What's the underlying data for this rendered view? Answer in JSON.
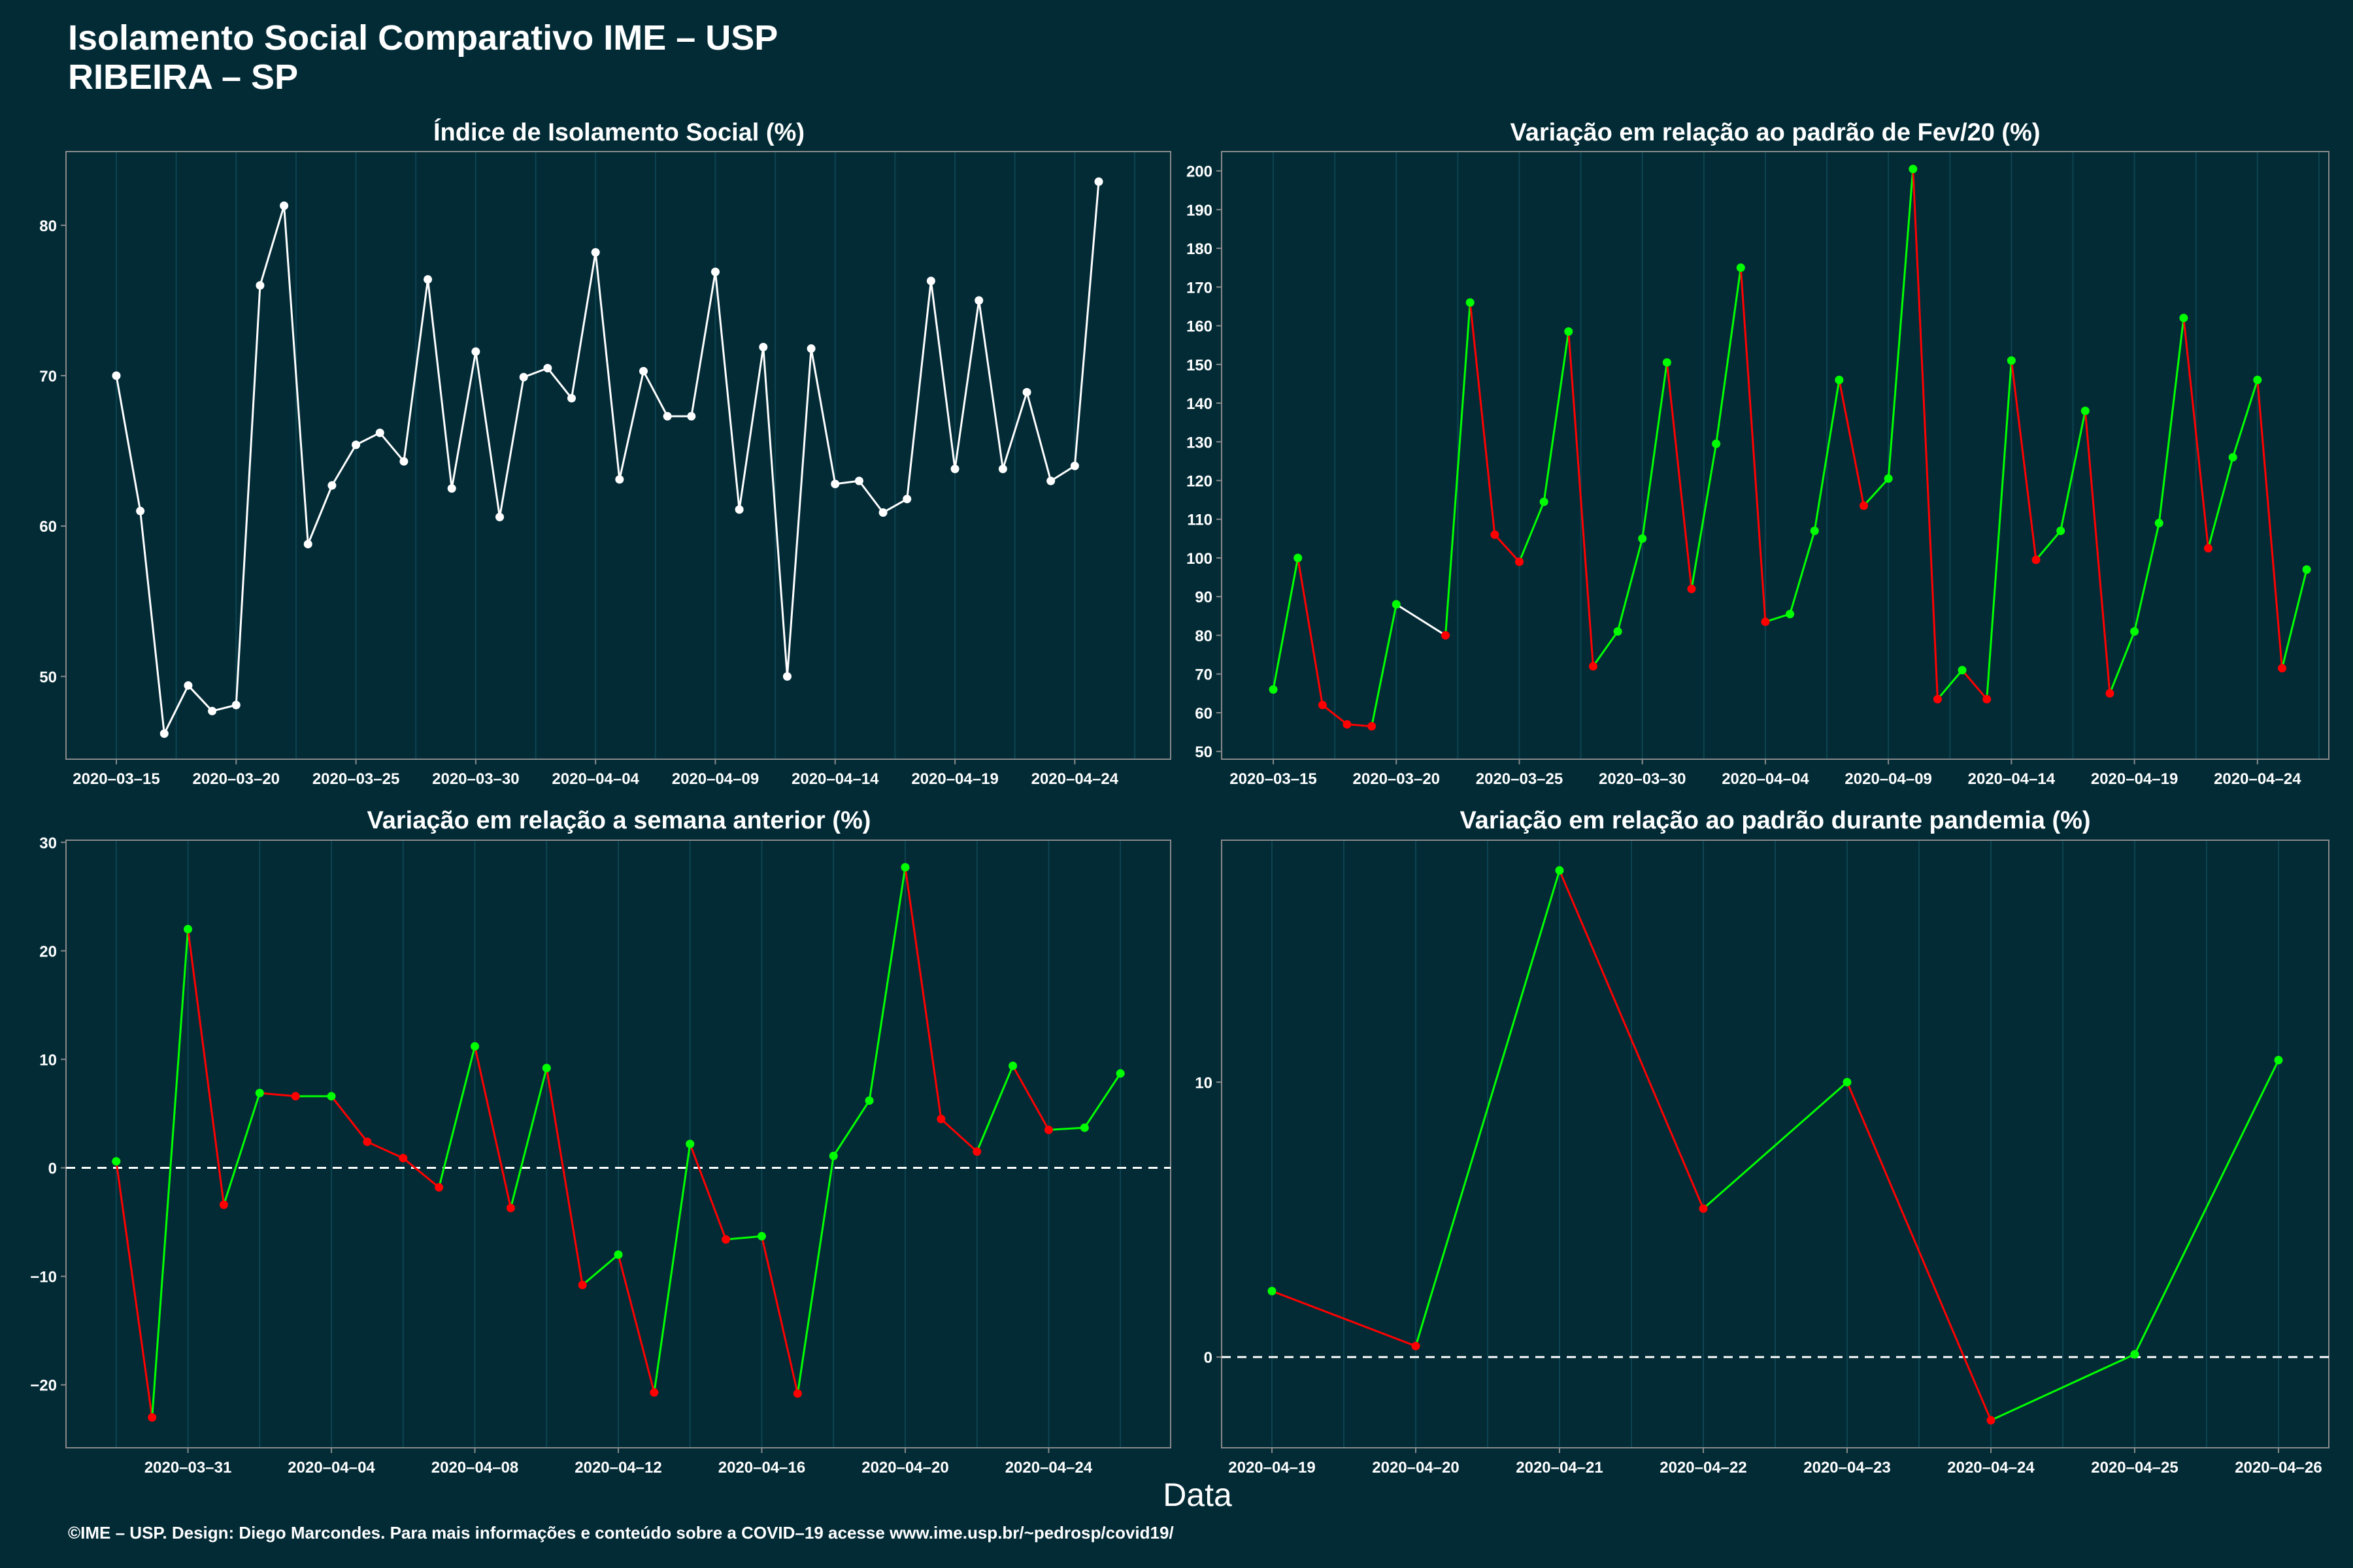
{
  "page": {
    "title_line1": "Isolamento Social Comparativo IME – USP",
    "title_line2": "RIBEIRA – SP",
    "xlabel": "Data",
    "footer": "©IME – USP. Design: Diego Marcondes. Para mais informações e conteúdo sobre a COVID–19 acesse www.ime.usp.br/~pedrosp/covid19/"
  },
  "colors": {
    "background": "#022b36",
    "line_white": "#ffffff",
    "up": "#00ff00",
    "down": "#ff0000",
    "grid": "#0d4450"
  },
  "chart_data": [
    {
      "type": "line",
      "title": "Índice de Isolamento Social (%)",
      "x_start": "2020-03-15",
      "ylim": [
        44.5,
        84.9
      ],
      "yticks": [
        50,
        60,
        70,
        80
      ],
      "xticks": [
        "2020–03–15",
        "2020–03–20",
        "2020–03–25",
        "2020–03–30",
        "2020–04–04",
        "2020–04–09",
        "2020–04–14",
        "2020–04–19",
        "2020–04–24"
      ],
      "xtick_idx": [
        0,
        5,
        10,
        15,
        20,
        25,
        30,
        35,
        40
      ],
      "x_range": [
        -2.1,
        44.0
      ],
      "color_mode": "white",
      "series": [
        {
          "values": [
            70.0,
            61.0,
            46.2,
            49.4,
            47.7,
            48.1,
            76.0,
            81.3,
            58.8,
            62.7,
            65.4,
            66.2,
            64.3,
            76.4,
            62.5,
            71.6,
            60.6,
            69.9,
            70.5,
            68.5,
            78.2,
            63.1,
            70.3,
            67.3,
            67.3,
            76.9,
            61.1,
            71.9,
            50.0,
            71.8,
            62.8,
            63.0,
            60.9,
            61.8,
            76.3,
            63.8,
            75.0,
            63.8,
            68.9,
            63.0,
            64.0,
            82.9
          ]
        }
      ]
    },
    {
      "type": "line",
      "title": "Variação em relação ao padrão de Fev/20 (%)",
      "x_start": "2020-03-15",
      "ylim": [
        48,
        205
      ],
      "yticks": [
        50,
        60,
        70,
        80,
        90,
        100,
        110,
        120,
        130,
        140,
        150,
        160,
        170,
        180,
        190,
        200
      ],
      "xticks": [
        "2020–03–15",
        "2020–03–20",
        "2020–03–25",
        "2020–03–30",
        "2020–04–04",
        "2020–04–09",
        "2020–04–14",
        "2020–04–19",
        "2020–04–24"
      ],
      "xtick_idx": [
        0,
        5,
        10,
        15,
        20,
        25,
        30,
        35,
        40
      ],
      "x_range": [
        -2.1,
        42.9
      ],
      "color_mode": "trend",
      "series": [
        {
          "values": [
            66,
            100,
            62,
            57,
            56.5,
            88,
            null,
            80,
            166,
            106,
            99,
            114.5,
            158.5,
            72,
            81,
            105,
            150.5,
            92,
            129.5,
            175,
            83.5,
            85.5,
            107,
            146,
            113.5,
            120.5,
            200.5,
            63.5,
            71,
            63.5,
            151,
            99.5,
            107,
            138,
            65,
            81,
            109,
            162,
            102.5,
            126,
            146,
            71.5,
            97
          ]
        }
      ]
    },
    {
      "type": "line",
      "title": "Variação em relação a semana anterior (%)",
      "x_start": "2020-03-28",
      "ylim": [
        -25.8,
        30.2
      ],
      "yticks": [
        -20,
        -10,
        0,
        10,
        20,
        30
      ],
      "xticks": [
        "2020–03–31",
        "2020–04–04",
        "2020–04–08",
        "2020–04–12",
        "2020–04–16",
        "2020–04–20",
        "2020–04–24"
      ],
      "xtick_idx": [
        2,
        6,
        10,
        14,
        18,
        22,
        26
      ],
      "x_range": [
        -1.4,
        29.4
      ],
      "zero_line": true,
      "color_mode": "trend",
      "series": [
        {
          "values": [
            0.6,
            -23.0,
            22.0,
            -3.4,
            6.9,
            6.6,
            6.6,
            2.4,
            0.9,
            -1.8,
            11.2,
            -3.7,
            9.2,
            -10.8,
            -8.0,
            -20.7,
            2.2,
            -6.6,
            -6.3,
            -20.8,
            1.1,
            6.2,
            27.7,
            4.5,
            1.5,
            9.4,
            3.5,
            3.7,
            8.7
          ]
        }
      ]
    },
    {
      "type": "line",
      "title": "Variação em relação ao padrão durante pandemia (%)",
      "x_start": "2020-04-19",
      "ylim": [
        -3.3,
        18.8
      ],
      "yticks": [
        0,
        10
      ],
      "xticks": [
        "2020–04–19",
        "2020–04–20",
        "2020–04–21",
        "2020–04–22",
        "2020–04–23",
        "2020–04–24",
        "2020–04–25",
        "2020–04–26"
      ],
      "xtick_idx": [
        0,
        1,
        2,
        3,
        4,
        5,
        6,
        7
      ],
      "x_range": [
        -0.35,
        7.35
      ],
      "zero_line": true,
      "color_mode": "trend",
      "series": [
        {
          "values": [
            2.4,
            0.4,
            17.7,
            5.4,
            10.0,
            -2.3,
            0.1,
            10.8
          ]
        }
      ]
    }
  ]
}
